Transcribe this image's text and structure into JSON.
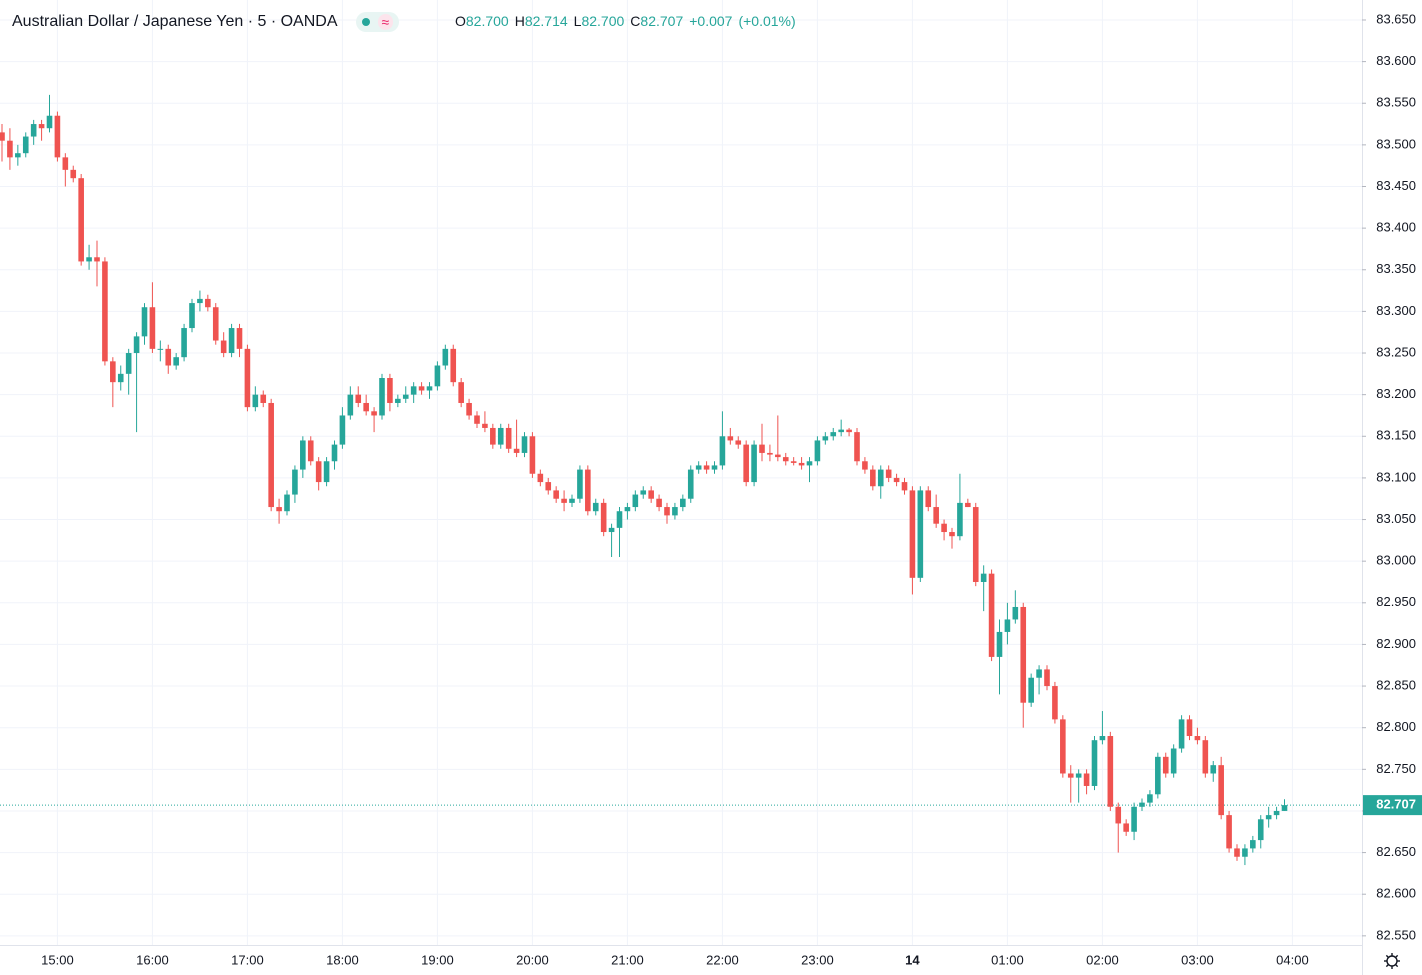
{
  "chart_data": {
    "type": "candlestick",
    "title": "Australian Dollar / Japanese Yen · 5 · OANDA",
    "ohlc_legend": [
      {
        "label": "O",
        "value": "82.700"
      },
      {
        "label": "H",
        "value": "82.714"
      },
      {
        "label": "L",
        "value": "82.700"
      },
      {
        "label": "C",
        "value": "82.707"
      }
    ],
    "change": "+0.007",
    "change_percent": "(+0.01%)",
    "up_color": "#26a69a",
    "down_color": "#ef5350",
    "x_axis_labels": [
      "15:00",
      "16:00",
      "17:00",
      "18:00",
      "19:00",
      "20:00",
      "21:00",
      "22:00",
      "23:00",
      "14",
      "01:00",
      "02:00",
      "03:00",
      "04:00"
    ],
    "ylim": [
      82.539,
      83.674
    ],
    "yticks": [
      {
        "value": 82.55,
        "label": "82.550"
      },
      {
        "value": 82.6,
        "label": "82.600"
      },
      {
        "value": 82.65,
        "label": "82.650"
      },
      {
        "value": 82.7,
        "label": "82.700"
      },
      {
        "value": 82.75,
        "label": "82.750"
      },
      {
        "value": 82.8,
        "label": "82.800"
      },
      {
        "value": 82.85,
        "label": "82.850"
      },
      {
        "value": 82.9,
        "label": "82.900"
      },
      {
        "value": 82.95,
        "label": "82.950"
      },
      {
        "value": 83,
        "label": "83.000"
      },
      {
        "value": 83.05,
        "label": "83.050"
      },
      {
        "value": 83.1,
        "label": "83.100"
      },
      {
        "value": 83.15,
        "label": "83.150"
      },
      {
        "value": 83.2,
        "label": "83.200"
      },
      {
        "value": 83.25,
        "label": "83.250"
      },
      {
        "value": 83.3,
        "label": "83.300"
      },
      {
        "value": 83.35,
        "label": "83.350"
      },
      {
        "value": 83.4,
        "label": "83.400"
      },
      {
        "value": 83.45,
        "label": "83.450"
      },
      {
        "value": 83.5,
        "label": "83.500"
      },
      {
        "value": 83.55,
        "label": "83.550"
      },
      {
        "value": 83.6,
        "label": "83.600"
      },
      {
        "value": 83.65,
        "label": "83.650"
      }
    ],
    "last_price": {
      "value": 82.707,
      "label": "82.707"
    },
    "grid": true,
    "open": [
      83.515,
      83.505,
      83.485,
      83.49,
      83.51,
      83.525,
      83.52,
      83.535,
      83.485,
      83.47,
      83.46,
      83.36,
      83.365,
      83.36,
      83.24,
      83.215,
      83.225,
      83.25,
      83.27,
      83.305,
      83.255,
      83.255,
      83.235,
      83.245,
      83.28,
      83.31,
      83.315,
      83.305,
      83.265,
      83.25,
      83.28,
      83.255,
      83.185,
      83.2,
      83.19,
      83.065,
      83.06,
      83.08,
      83.11,
      83.145,
      83.12,
      83.095,
      83.12,
      83.14,
      83.175,
      83.2,
      83.19,
      83.18,
      83.175,
      83.22,
      83.19,
      83.195,
      83.2,
      83.21,
      83.205,
      83.21,
      83.235,
      83.255,
      83.215,
      83.19,
      83.175,
      83.165,
      83.16,
      83.14,
      83.16,
      83.135,
      83.13,
      83.15,
      83.105,
      83.095,
      83.085,
      83.075,
      83.07,
      83.075,
      83.11,
      83.06,
      83.07,
      83.035,
      83.04,
      83.06,
      83.065,
      83.08,
      83.085,
      83.075,
      83.065,
      83.055,
      83.065,
      83.075,
      83.11,
      83.115,
      83.11,
      83.115,
      83.15,
      83.145,
      83.14,
      83.095,
      83.14,
      83.13,
      83.128,
      83.125,
      83.12,
      83.118,
      83.115,
      83.12,
      83.145,
      83.15,
      83.155,
      83.158,
      83.155,
      83.12,
      83.11,
      83.09,
      83.11,
      83.1,
      83.095,
      83.085,
      82.98,
      83.085,
      83.065,
      83.045,
      83.035,
      83.03,
      83.07,
      83.065,
      82.975,
      82.985,
      82.885,
      82.915,
      82.93,
      82.945,
      82.83,
      82.86,
      82.87,
      82.85,
      82.81,
      82.745,
      82.74,
      82.745,
      82.73,
      82.785,
      82.79,
      82.705,
      82.685,
      82.675,
      82.705,
      82.71,
      82.72,
      82.765,
      82.745,
      82.775,
      82.81,
      82.79,
      82.785,
      82.745,
      82.755,
      82.695,
      82.655,
      82.645,
      82.655,
      82.665,
      82.69,
      82.695,
      82.7
    ],
    "high": [
      83.525,
      83.52,
      83.5,
      83.515,
      83.53,
      83.53,
      83.56,
      83.54,
      83.49,
      83.475,
      83.465,
      83.38,
      83.385,
      83.365,
      83.245,
      83.235,
      83.255,
      83.275,
      83.31,
      83.335,
      83.265,
      83.26,
      83.25,
      83.285,
      83.315,
      83.325,
      83.32,
      83.31,
      83.275,
      83.285,
      83.285,
      83.26,
      83.21,
      83.205,
      83.195,
      83.075,
      83.085,
      83.115,
      83.15,
      83.15,
      83.125,
      83.125,
      83.145,
      83.185,
      83.21,
      83.21,
      83.2,
      83.185,
      83.225,
      83.225,
      83.2,
      83.21,
      83.215,
      83.215,
      83.215,
      83.24,
      83.26,
      83.26,
      83.22,
      83.195,
      83.18,
      83.18,
      83.165,
      83.165,
      83.165,
      83.17,
      83.155,
      83.155,
      83.11,
      83.1,
      83.09,
      83.085,
      83.08,
      83.115,
      83.115,
      83.075,
      83.075,
      83.045,
      83.065,
      83.07,
      83.085,
      83.09,
      83.09,
      83.08,
      83.07,
      83.07,
      83.08,
      83.115,
      83.12,
      83.12,
      83.12,
      83.18,
      83.16,
      83.15,
      83.145,
      83.145,
      83.165,
      83.14,
      83.175,
      83.13,
      83.125,
      83.125,
      83.125,
      83.15,
      83.155,
      83.16,
      83.17,
      83.16,
      83.16,
      83.125,
      83.115,
      83.115,
      83.115,
      83.105,
      83.1,
      83.09,
      83.09,
      83.09,
      83.08,
      83.05,
      83.04,
      83.105,
      83.075,
      83.07,
      82.995,
      82.99,
      82.93,
      82.95,
      82.965,
      82.95,
      82.865,
      82.875,
      82.875,
      82.855,
      82.815,
      82.755,
      82.75,
      82.75,
      82.79,
      82.82,
      82.795,
      82.71,
      82.69,
      82.71,
      82.715,
      82.725,
      82.77,
      82.77,
      82.78,
      82.815,
      82.815,
      82.8,
      82.79,
      82.76,
      82.765,
      82.7,
      82.66,
      82.66,
      82.67,
      82.695,
      82.705,
      82.705,
      82.714
    ],
    "low": [
      83.48,
      83.47,
      83.475,
      83.485,
      83.5,
      83.505,
      83.515,
      83.48,
      83.45,
      83.455,
      83.355,
      83.35,
      83.33,
      83.235,
      83.185,
      83.205,
      83.2,
      83.155,
      83.26,
      83.25,
      83.24,
      83.225,
      83.23,
      83.24,
      83.275,
      83.3,
      83.3,
      83.26,
      83.245,
      83.245,
      83.245,
      83.18,
      83.18,
      83.185,
      83.06,
      83.045,
      83.055,
      83.07,
      83.1,
      83.115,
      83.085,
      83.09,
      83.11,
      83.135,
      83.17,
      83.185,
      83.175,
      83.155,
      83.17,
      83.18,
      83.185,
      83.19,
      83.19,
      83.2,
      83.195,
      83.205,
      83.23,
      83.21,
      83.185,
      83.17,
      83.16,
      83.155,
      83.135,
      83.135,
      83.13,
      83.125,
      83.125,
      83.1,
      83.09,
      83.08,
      83.07,
      83.06,
      83.065,
      83.07,
      83.055,
      83.055,
      83.03,
      83.005,
      83.005,
      83.05,
      83.06,
      83.075,
      83.07,
      83.06,
      83.045,
      83.05,
      83.06,
      83.07,
      83.105,
      83.105,
      83.105,
      83.11,
      83.14,
      83.135,
      83.09,
      83.09,
      83.12,
      83.12,
      83.12,
      83.115,
      83.115,
      83.11,
      83.095,
      83.115,
      83.14,
      83.145,
      83.15,
      83.15,
      83.115,
      83.105,
      83.085,
      83.075,
      83.095,
      83.09,
      83.08,
      82.96,
      82.975,
      83.06,
      83.04,
      83.025,
      83.015,
      83.025,
      83.065,
      82.97,
      82.94,
      82.88,
      82.84,
      82.9,
      82.925,
      82.8,
      82.825,
      82.84,
      82.845,
      82.805,
      82.74,
      82.71,
      82.71,
      82.72,
      82.725,
      82.78,
      82.7,
      82.65,
      82.67,
      82.665,
      82.7,
      82.705,
      82.715,
      82.74,
      82.74,
      82.77,
      82.785,
      82.78,
      82.74,
      82.735,
      82.69,
      82.65,
      82.64,
      82.635,
      82.65,
      82.655,
      82.68,
      82.69,
      82.7
    ],
    "close": [
      83.505,
      83.485,
      83.49,
      83.51,
      83.525,
      83.52,
      83.535,
      83.485,
      83.47,
      83.46,
      83.36,
      83.365,
      83.36,
      83.24,
      83.215,
      83.225,
      83.25,
      83.27,
      83.305,
      83.255,
      83.255,
      83.235,
      83.245,
      83.28,
      83.31,
      83.315,
      83.305,
      83.265,
      83.25,
      83.28,
      83.255,
      83.185,
      83.2,
      83.19,
      83.065,
      83.06,
      83.08,
      83.11,
      83.145,
      83.12,
      83.095,
      83.12,
      83.14,
      83.175,
      83.2,
      83.19,
      83.18,
      83.175,
      83.22,
      83.19,
      83.195,
      83.2,
      83.21,
      83.205,
      83.21,
      83.235,
      83.255,
      83.215,
      83.19,
      83.175,
      83.165,
      83.16,
      83.14,
      83.16,
      83.135,
      83.13,
      83.15,
      83.105,
      83.095,
      83.085,
      83.075,
      83.07,
      83.075,
      83.11,
      83.06,
      83.07,
      83.035,
      83.04,
      83.06,
      83.065,
      83.08,
      83.085,
      83.075,
      83.065,
      83.055,
      83.065,
      83.075,
      83.11,
      83.115,
      83.11,
      83.115,
      83.15,
      83.145,
      83.14,
      83.095,
      83.14,
      83.13,
      83.128,
      83.125,
      83.12,
      83.118,
      83.115,
      83.12,
      83.145,
      83.15,
      83.155,
      83.158,
      83.155,
      83.12,
      83.11,
      83.09,
      83.11,
      83.1,
      83.095,
      83.085,
      82.98,
      83.085,
      83.065,
      83.045,
      83.035,
      83.03,
      83.07,
      83.065,
      82.975,
      82.985,
      82.885,
      82.915,
      82.93,
      82.945,
      82.83,
      82.86,
      82.87,
      82.85,
      82.81,
      82.745,
      82.74,
      82.745,
      82.73,
      82.785,
      82.79,
      82.705,
      82.685,
      82.675,
      82.705,
      82.71,
      82.72,
      82.765,
      82.745,
      82.775,
      82.81,
      82.79,
      82.785,
      82.745,
      82.755,
      82.695,
      82.655,
      82.645,
      82.655,
      82.665,
      82.69,
      82.695,
      82.7,
      82.707
    ]
  }
}
